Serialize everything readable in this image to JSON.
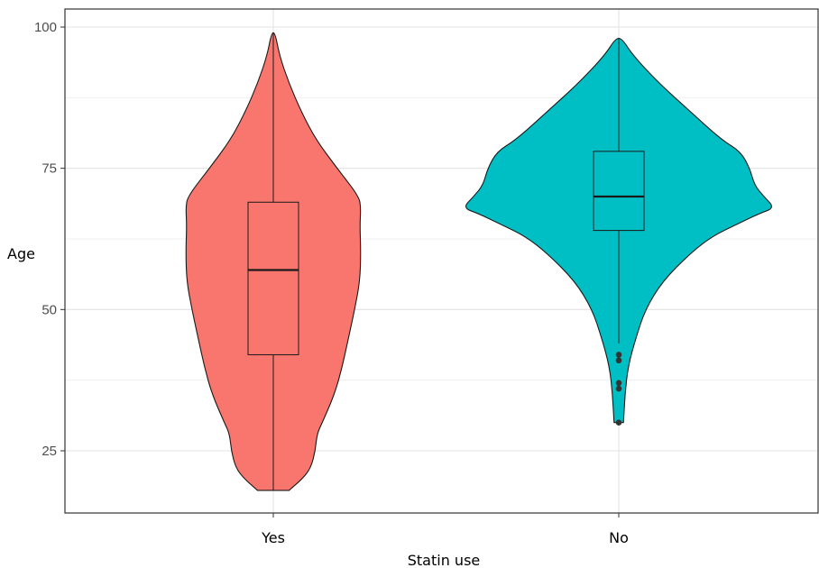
{
  "chart_data": {
    "type": "violin",
    "title": "",
    "xlabel": "Statin use",
    "ylabel": "Age",
    "ylim": [
      15,
      102
    ],
    "yticks": [
      25,
      50,
      75,
      100
    ],
    "grid": true,
    "legend": "none",
    "categories": [
      "Yes",
      "No"
    ],
    "colors": [
      "#F8766D",
      "#00BFC4"
    ],
    "violins": [
      {
        "category": "Yes",
        "min": 18,
        "max": 99,
        "density_profile": [
          [
            18,
            0.18
          ],
          [
            20,
            0.33
          ],
          [
            22,
            0.43
          ],
          [
            25,
            0.48
          ],
          [
            28,
            0.5
          ],
          [
            30,
            0.56
          ],
          [
            35,
            0.7
          ],
          [
            40,
            0.79
          ],
          [
            45,
            0.86
          ],
          [
            50,
            0.93
          ],
          [
            55,
            0.99
          ],
          [
            60,
            1.0
          ],
          [
            65,
            0.99
          ],
          [
            68,
            1.0
          ],
          [
            70,
            0.98
          ],
          [
            75,
            0.73
          ],
          [
            80,
            0.49
          ],
          [
            85,
            0.32
          ],
          [
            90,
            0.18
          ],
          [
            95,
            0.07
          ],
          [
            99,
            0.02
          ]
        ],
        "box": {
          "q1": 42,
          "median": 57,
          "q3": 69,
          "whisker_low": 18,
          "whisker_high": 99
        },
        "outliers": []
      },
      {
        "category": "No",
        "min": 30,
        "max": 98,
        "density_profile": [
          [
            30,
            0.03
          ],
          [
            35,
            0.04
          ],
          [
            40,
            0.06
          ],
          [
            45,
            0.11
          ],
          [
            50,
            0.17
          ],
          [
            55,
            0.28
          ],
          [
            60,
            0.46
          ],
          [
            63,
            0.6
          ],
          [
            65,
            0.75
          ],
          [
            67,
            0.9
          ],
          [
            68,
            1.0
          ],
          [
            70,
            0.93
          ],
          [
            72,
            0.87
          ],
          [
            75,
            0.84
          ],
          [
            78,
            0.78
          ],
          [
            80,
            0.66
          ],
          [
            85,
            0.46
          ],
          [
            90,
            0.26
          ],
          [
            95,
            0.09
          ],
          [
            98,
            0.02
          ]
        ],
        "box": {
          "q1": 64,
          "median": 70,
          "q3": 78,
          "whisker_low": 44,
          "whisker_high": 98
        },
        "outliers": [
          30,
          36,
          37,
          41,
          42
        ]
      }
    ]
  }
}
